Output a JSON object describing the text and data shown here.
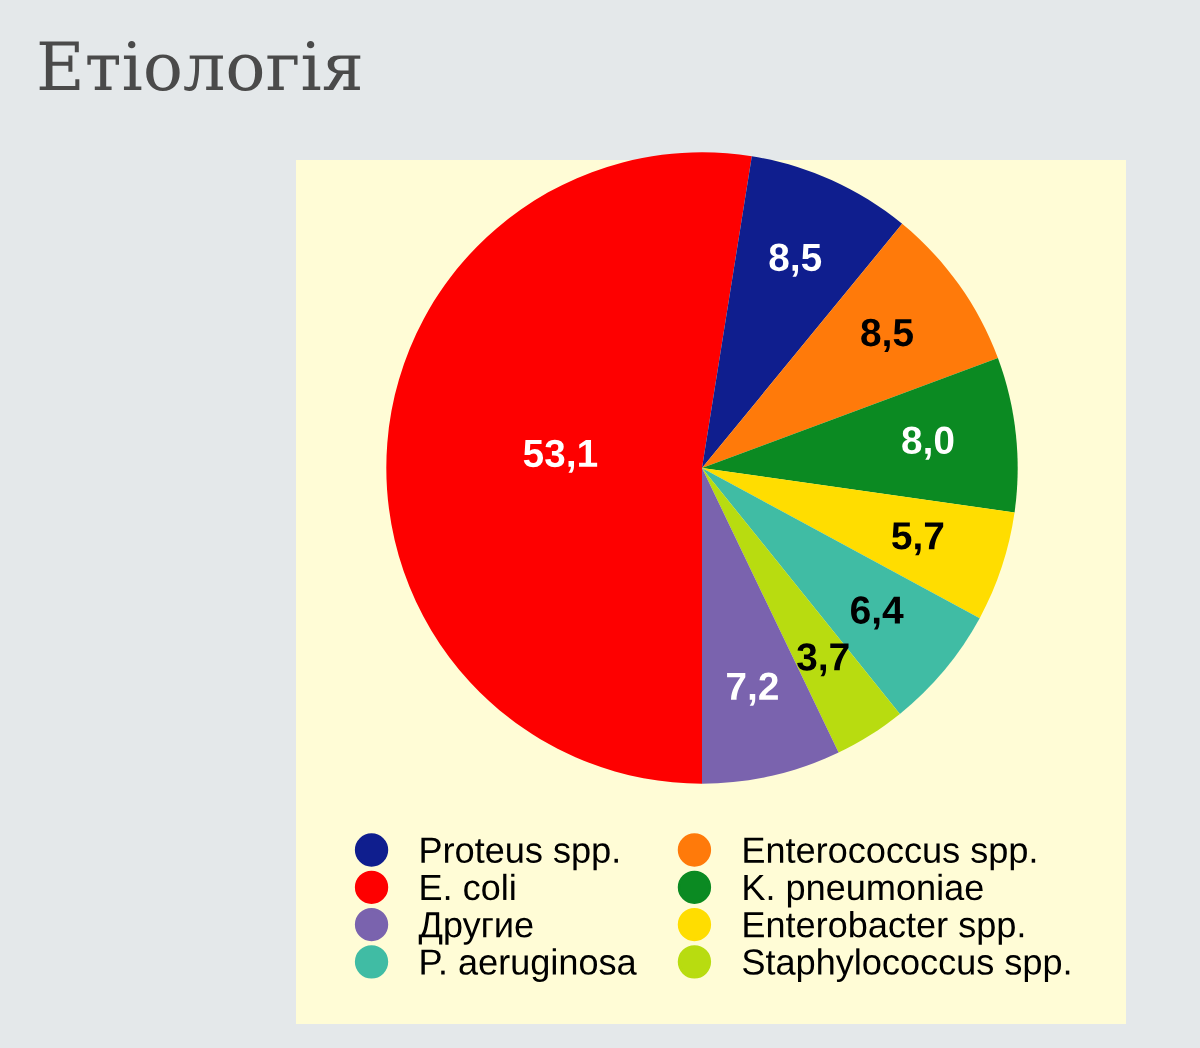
{
  "chart_data": {
    "type": "pie",
    "title": "Етіологія",
    "categories": [
      "E. coli",
      "Proteus spp.",
      "Enterococcus spp.",
      "K. pneumoniae",
      "Enterobacter spp.",
      "P. aeruginosa",
      "Staphylococcus spp.",
      "Другие"
    ],
    "values": [
      53.1,
      8.5,
      8.5,
      8.0,
      5.7,
      6.4,
      3.7,
      7.2
    ],
    "value_labels": [
      "53,1",
      "8,5",
      "8,5",
      "8,0",
      "5,7",
      "6,4",
      "3,7",
      "7,2"
    ],
    "colors": [
      "#fe0000",
      "#0f1e8e",
      "#ff7a0a",
      "#0b8a22",
      "#ffdd00",
      "#40bca4",
      "#b8dc10",
      "#7a63ae"
    ],
    "legend": "bottom"
  }
}
